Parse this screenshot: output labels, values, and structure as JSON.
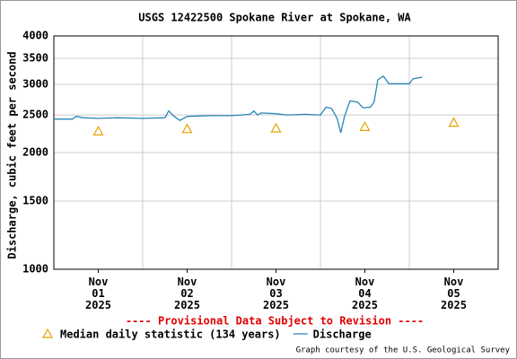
{
  "chart_data": {
    "type": "line",
    "title": "USGS 12422500 Spokane River at Spokane, WA",
    "ylabel": "Discharge, cubic feet per second",
    "annotation": "---- Provisional Data Subject to Revision ----",
    "credit": "Graph courtesy of the U.S. Geological Survey",
    "log_scale": true,
    "grid": true,
    "ylim": [
      1000,
      4000
    ],
    "yticks": [
      1000,
      1500,
      2000,
      2500,
      3000,
      3500,
      4000
    ],
    "xlim": [
      "2025-11-01T00:00",
      "2025-11-06T00:00"
    ],
    "xticks": [
      {
        "value": "2025-11-01T12:00",
        "label": "Nov\n01\n2025"
      },
      {
        "value": "2025-11-02T12:00",
        "label": "Nov\n02\n2025"
      },
      {
        "value": "2025-11-03T12:00",
        "label": "Nov\n03\n2025"
      },
      {
        "value": "2025-11-04T12:00",
        "label": "Nov\n04\n2025"
      },
      {
        "value": "2025-11-05T12:00",
        "label": "Nov\n05\n2025"
      }
    ],
    "xgrid": [
      "2025-11-02T00:00",
      "2025-11-03T00:00",
      "2025-11-04T00:00",
      "2025-11-05T00:00"
    ],
    "series": [
      {
        "name": "Median daily statistic (134 years)",
        "color": "#e8a000",
        "marker": "triangle",
        "x": [
          "2025-11-01T12:00",
          "2025-11-02T12:00",
          "2025-11-03T12:00",
          "2025-11-04T12:00",
          "2025-11-05T12:00"
        ],
        "values": [
          2270,
          2300,
          2310,
          2330,
          2390
        ]
      },
      {
        "name": "Discharge",
        "color": "#2a86b8",
        "marker": "line",
        "x": [
          "2025-11-01T00:00",
          "2025-11-01T05:00",
          "2025-11-01T06:00",
          "2025-11-01T08:00",
          "2025-11-01T12:00",
          "2025-11-01T17:00",
          "2025-11-02T00:00",
          "2025-11-02T06:00",
          "2025-11-02T07:00",
          "2025-11-02T08:30",
          "2025-11-02T10:00",
          "2025-11-02T12:00",
          "2025-11-02T18:00",
          "2025-11-03T00:00",
          "2025-11-03T05:00",
          "2025-11-03T06:00",
          "2025-11-03T07:00",
          "2025-11-03T08:00",
          "2025-11-03T12:00",
          "2025-11-03T15:00",
          "2025-11-03T20:00",
          "2025-11-04T00:00",
          "2025-11-04T01:30",
          "2025-11-04T03:00",
          "2025-11-04T04:30",
          "2025-11-04T05:30",
          "2025-11-04T06:30",
          "2025-11-04T08:00",
          "2025-11-04T10:00",
          "2025-11-04T11:30",
          "2025-11-04T13:30",
          "2025-11-04T14:30",
          "2025-11-04T15:30",
          "2025-11-04T17:00",
          "2025-11-04T18:30",
          "2025-11-05T00:00",
          "2025-11-05T01:00",
          "2025-11-05T03:30"
        ],
        "values": [
          2440,
          2440,
          2480,
          2460,
          2450,
          2460,
          2450,
          2460,
          2560,
          2480,
          2420,
          2480,
          2490,
          2490,
          2510,
          2560,
          2500,
          2530,
          2520,
          2500,
          2510,
          2500,
          2620,
          2600,
          2450,
          2250,
          2480,
          2720,
          2700,
          2610,
          2620,
          2700,
          3080,
          3150,
          3010,
          3010,
          3100,
          3130
        ]
      }
    ]
  }
}
